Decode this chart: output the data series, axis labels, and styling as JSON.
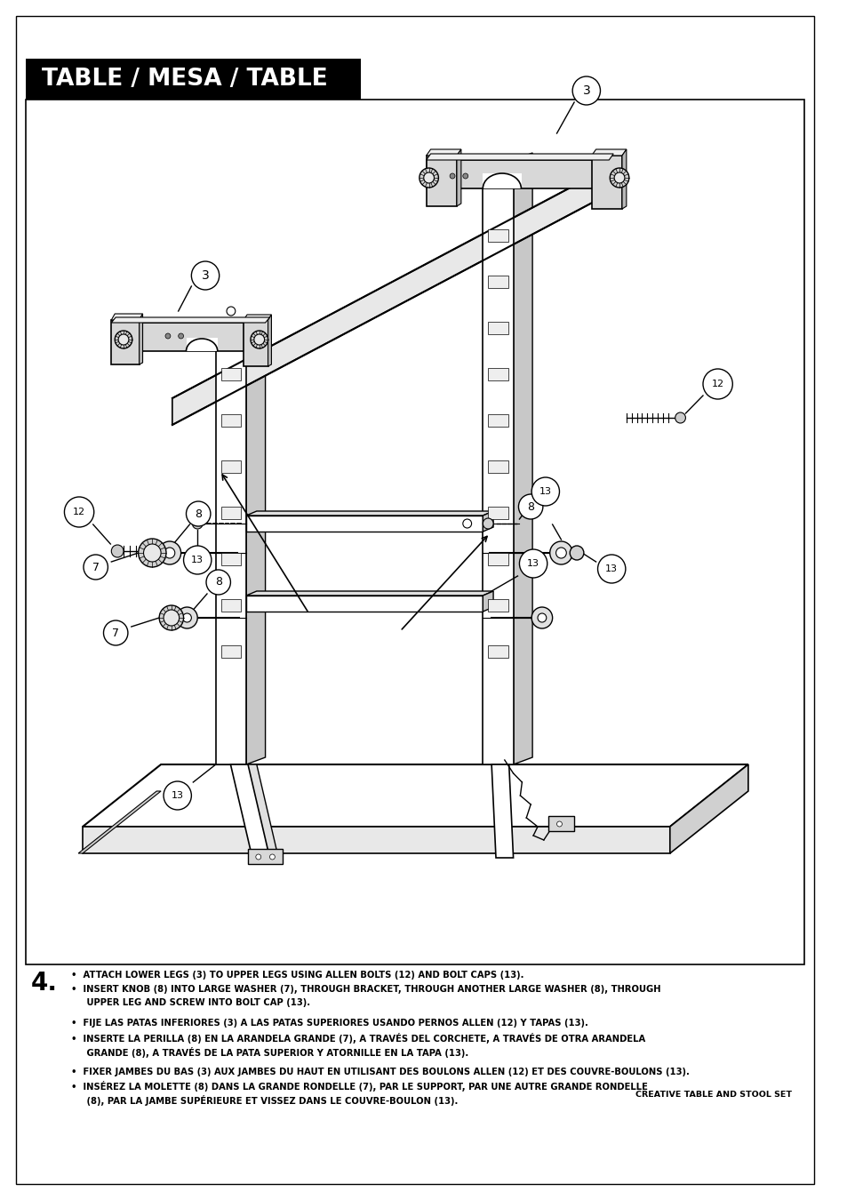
{
  "page_bg": "#ffffff",
  "border_color": "#000000",
  "title_text": "TABLE / MESA / TABLE",
  "title_bg": "#000000",
  "title_color": "#ffffff",
  "title_fontsize": 19,
  "step_number": "4.",
  "step_fontsize": 20,
  "text_fontsize": 7.2,
  "brand_text": "CREATIVE TABLE AND STOOL SET",
  "en_lines": [
    "•  ATTACH LOWER LEGS (3) TO UPPER LEGS USING ALLEN BOLTS (12) AND BOLT CAPS (13).",
    "•  INSERT KNOB (8) INTO LARGE WASHER (7), THROUGH BRACKET, THROUGH ANOTHER LARGE WASHER (8), THROUGH",
    "     UPPER LEG AND SCREW INTO BOLT CAP (13)."
  ],
  "es_lines": [
    "•  FIJE LAS PATAS INFERIORES (3) A LAS PATAS SUPERIORES USANDO PERNOS ALLEN (12) Y TAPAS (13).",
    "•  INSERTE LA PERILLA (8) EN LA ARANDELA GRANDE (7), A TRAVÉS DEL CORCHETE, A TRAVÉS DE OTRA ARANDELA",
    "     GRANDE (8), A TRAVÉS DE LA PATA SUPERIOR Y ATORNILLE EN LA TAPA (13)."
  ],
  "fr_lines": [
    "•  FIXER JAMBES DU BAS (3) AUX JAMBES DU HAUT EN UTILISANT DES BOULONS ALLEN (12) ET DES COUVRE-BOULONS (13).",
    "•  INSÉREZ LA MOLETTE (8) DANS LA GRANDE RONDELLE (7), PAR LE SUPPORT, PAR UNE AUTRE GRANDE RONDELLE",
    "     (8), PAR LA JAMBE SUPÉRIEURE ET VISSEZ DANS LE COUVRE-BOULON (13)."
  ]
}
